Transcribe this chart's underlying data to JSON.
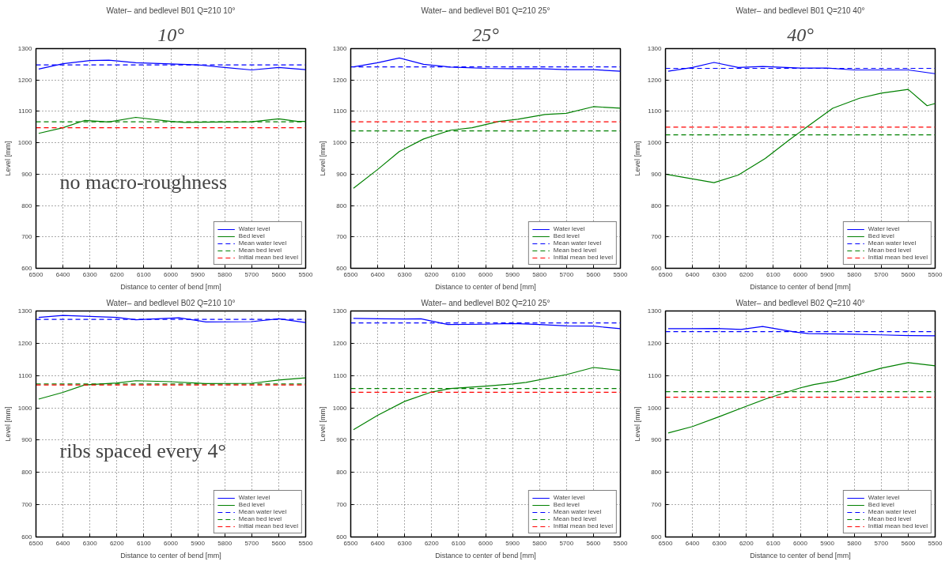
{
  "chart_data": [
    {
      "type": "line",
      "subtitle": "10°",
      "title": "Water– and bedlevel B01 Q=210 10°",
      "xlabel": "Distance to center of bend [mm]",
      "ylabel": "Level [mm]",
      "annotations": [
        "no macro-roughness"
      ],
      "xlim": [
        6500,
        5500
      ],
      "ylim": [
        600,
        1300
      ],
      "xticks": [
        6500,
        6400,
        6300,
        6200,
        6100,
        6000,
        5900,
        5800,
        5700,
        5600,
        5500
      ],
      "yticks": [
        600,
        700,
        800,
        900,
        1000,
        1100,
        1200,
        1300
      ],
      "grid": true,
      "legend": "bottom right",
      "series": [
        {
          "name": "Water level",
          "color": "#0000ff",
          "line_style": "solid",
          "x": [
            6490,
            6400,
            6300,
            6230,
            6130,
            6000,
            5900,
            5800,
            5700,
            5600,
            5500
          ],
          "values": [
            1235,
            1252,
            1262,
            1263,
            1255,
            1251,
            1248,
            1240,
            1232,
            1240,
            1233
          ]
        },
        {
          "name": "Bed level",
          "color": "#008000",
          "line_style": "solid",
          "x": [
            6490,
            6400,
            6320,
            6230,
            6130,
            6000,
            5950,
            5800,
            5700,
            5600,
            5530,
            5500
          ],
          "values": [
            1030,
            1048,
            1071,
            1066,
            1081,
            1068,
            1065,
            1066,
            1067,
            1076,
            1068,
            1068
          ]
        },
        {
          "name": "Mean water level",
          "color": "#0000ff",
          "line_style": "dashed",
          "x": [
            6500,
            5500
          ],
          "values": [
            1248,
            1248
          ]
        },
        {
          "name": "Mean bed level",
          "color": "#008000",
          "line_style": "dashed",
          "x": [
            6500,
            5500
          ],
          "values": [
            1067,
            1067
          ]
        },
        {
          "name": "Initial mean bed level",
          "color": "#ff0000",
          "line_style": "dashed",
          "x": [
            6500,
            5500
          ],
          "values": [
            1048,
            1048
          ]
        }
      ]
    },
    {
      "type": "line",
      "subtitle": "25°",
      "title": "Water– and bedlevel B01 Q=210 25°",
      "xlabel": "Distance to center of bend [mm]",
      "ylabel": "Level [mm]",
      "xlim": [
        6500,
        5500
      ],
      "ylim": [
        600,
        1300
      ],
      "xticks": [
        6500,
        6400,
        6300,
        6200,
        6100,
        6000,
        5900,
        5800,
        5700,
        5600,
        5500
      ],
      "yticks": [
        600,
        700,
        800,
        900,
        1000,
        1100,
        1200,
        1300
      ],
      "grid": true,
      "legend": "bottom right",
      "series": [
        {
          "name": "Water level",
          "color": "#0000ff",
          "line_style": "solid",
          "x": [
            6490,
            6400,
            6320,
            6230,
            6130,
            6000,
            5900,
            5800,
            5700,
            5600,
            5500
          ],
          "values": [
            1242,
            1255,
            1270,
            1250,
            1241,
            1237,
            1236,
            1236,
            1233,
            1233,
            1228
          ]
        },
        {
          "name": "Bed level",
          "color": "#008000",
          "line_style": "solid",
          "x": [
            6490,
            6400,
            6320,
            6230,
            6130,
            6050,
            5950,
            5880,
            5780,
            5700,
            5600,
            5500
          ],
          "values": [
            855,
            915,
            972,
            1012,
            1040,
            1048,
            1068,
            1075,
            1090,
            1094,
            1115,
            1110
          ]
        },
        {
          "name": "Mean water level",
          "color": "#0000ff",
          "line_style": "dashed",
          "x": [
            6500,
            5500
          ],
          "values": [
            1242,
            1242
          ]
        },
        {
          "name": "Mean bed level",
          "color": "#008000",
          "line_style": "dashed",
          "x": [
            6500,
            5500
          ],
          "values": [
            1038,
            1038
          ]
        },
        {
          "name": "Initial mean bed level",
          "color": "#ff0000",
          "line_style": "dashed",
          "x": [
            6500,
            5500
          ],
          "values": [
            1067,
            1067
          ]
        }
      ]
    },
    {
      "type": "line",
      "subtitle": "40°",
      "title": "Water– and bedlevel B01 Q=210 40°",
      "xlabel": "Distance to center of bend [mm]",
      "ylabel": "Level [mm]",
      "xlim": [
        6500,
        5500
      ],
      "ylim": [
        600,
        1300
      ],
      "xticks": [
        6500,
        6400,
        6300,
        6200,
        6100,
        6000,
        5900,
        5800,
        5700,
        5600,
        5500
      ],
      "yticks": [
        600,
        700,
        800,
        900,
        1000,
        1100,
        1200,
        1300
      ],
      "grid": true,
      "legend": "bottom right",
      "series": [
        {
          "name": "Water level",
          "color": "#0000ff",
          "line_style": "solid",
          "x": [
            6490,
            6400,
            6320,
            6230,
            6140,
            6000,
            5900,
            5800,
            5700,
            5600,
            5500
          ],
          "values": [
            1228,
            1240,
            1256,
            1240,
            1243,
            1238,
            1238,
            1232,
            1232,
            1232,
            1220
          ]
        },
        {
          "name": "Bed level",
          "color": "#008000",
          "line_style": "solid",
          "x": [
            6500,
            6320,
            6230,
            6130,
            6040,
            5880,
            5780,
            5700,
            5600,
            5530,
            5500
          ],
          "values": [
            900,
            873,
            897,
            950,
            1010,
            1110,
            1142,
            1158,
            1170,
            1118,
            1125
          ]
        },
        {
          "name": "Mean water level",
          "color": "#0000ff",
          "line_style": "dashed",
          "x": [
            6500,
            5500
          ],
          "values": [
            1237,
            1237
          ]
        },
        {
          "name": "Mean bed level",
          "color": "#008000",
          "line_style": "dashed",
          "x": [
            6500,
            5500
          ],
          "values": [
            1025,
            1025
          ]
        },
        {
          "name": "Initial mean bed level",
          "color": "#ff0000",
          "line_style": "dashed",
          "x": [
            6500,
            5500
          ],
          "values": [
            1050,
            1050
          ]
        }
      ]
    },
    {
      "type": "line",
      "title": "Water– and bedlevel B02 Q=210 10°",
      "xlabel": "Distance to center of bend [mm]",
      "ylabel": "Level [mm]",
      "annotations": [
        "ribs spaced every 4°"
      ],
      "xlim": [
        6500,
        5500
      ],
      "ylim": [
        600,
        1300
      ],
      "xticks": [
        6500,
        6400,
        6300,
        6200,
        6100,
        6000,
        5900,
        5800,
        5700,
        5600,
        5500
      ],
      "yticks": [
        600,
        700,
        800,
        900,
        1000,
        1100,
        1200,
        1300
      ],
      "grid": true,
      "legend": "bottom right",
      "series": [
        {
          "name": "Water level",
          "color": "#0000ff",
          "line_style": "solid",
          "x": [
            6490,
            6400,
            6300,
            6200,
            6130,
            6050,
            5970,
            5870,
            5700,
            5600,
            5500
          ],
          "values": [
            1280,
            1286,
            1283,
            1280,
            1273,
            1276,
            1279,
            1266,
            1267,
            1276,
            1264
          ]
        },
        {
          "name": "Bed level",
          "color": "#008000",
          "line_style": "solid",
          "x": [
            6490,
            6400,
            6320,
            6200,
            6130,
            6000,
            5870,
            5700,
            5600,
            5500
          ],
          "values": [
            1027,
            1048,
            1071,
            1077,
            1084,
            1081,
            1075,
            1076,
            1086,
            1093
          ]
        },
        {
          "name": "Mean water level",
          "color": "#0000ff",
          "line_style": "dashed",
          "x": [
            6500,
            5500
          ],
          "values": [
            1274,
            1274
          ]
        },
        {
          "name": "Mean bed level",
          "color": "#008000",
          "line_style": "dashed",
          "x": [
            6500,
            5500
          ],
          "values": [
            1074,
            1074
          ]
        },
        {
          "name": "Initial mean bed level",
          "color": "#ff0000",
          "line_style": "dashed",
          "x": [
            6500,
            5500
          ],
          "values": [
            1071,
            1071
          ]
        }
      ]
    },
    {
      "type": "line",
      "title": "Water– and bedlevel B02 Q=210 25°",
      "xlabel": "Distance to center of bend [mm]",
      "ylabel": "Level [mm]",
      "xlim": [
        6500,
        5500
      ],
      "ylim": [
        600,
        1300
      ],
      "xticks": [
        6500,
        6400,
        6300,
        6200,
        6100,
        6000,
        5900,
        5800,
        5700,
        5600,
        5500
      ],
      "yticks": [
        600,
        700,
        800,
        900,
        1000,
        1100,
        1200,
        1300
      ],
      "grid": true,
      "legend": "bottom right",
      "series": [
        {
          "name": "Water level",
          "color": "#0000ff",
          "line_style": "solid",
          "x": [
            6490,
            6400,
            6300,
            6240,
            6140,
            6000,
            5900,
            5800,
            5700,
            5600,
            5500
          ],
          "values": [
            1277,
            1276,
            1275,
            1276,
            1258,
            1259,
            1261,
            1258,
            1254,
            1253,
            1245
          ]
        },
        {
          "name": "Bed level",
          "color": "#008000",
          "line_style": "solid",
          "x": [
            6490,
            6400,
            6300,
            6200,
            6130,
            6000,
            5900,
            5850,
            5700,
            5600,
            5500
          ],
          "values": [
            932,
            977,
            1020,
            1049,
            1060,
            1067,
            1074,
            1079,
            1103,
            1125,
            1116
          ]
        },
        {
          "name": "Mean water level",
          "color": "#0000ff",
          "line_style": "dashed",
          "x": [
            6500,
            5500
          ],
          "values": [
            1263,
            1263
          ]
        },
        {
          "name": "Mean bed level",
          "color": "#008000",
          "line_style": "dashed",
          "x": [
            6500,
            5500
          ],
          "values": [
            1060,
            1060
          ]
        },
        {
          "name": "Initial mean bed level",
          "color": "#ff0000",
          "line_style": "dashed",
          "x": [
            6500,
            5500
          ],
          "values": [
            1048,
            1048
          ]
        }
      ]
    },
    {
      "type": "line",
      "title": "Water– and bedlevel B02 Q=210 40°",
      "xlabel": "Distance to center of bend [mm]",
      "ylabel": "Level [mm]",
      "xlim": [
        6500,
        5500
      ],
      "ylim": [
        600,
        1300
      ],
      "xticks": [
        6500,
        6400,
        6300,
        6200,
        6100,
        6000,
        5900,
        5800,
        5700,
        5600,
        5500
      ],
      "yticks": [
        600,
        700,
        800,
        900,
        1000,
        1100,
        1200,
        1300
      ],
      "grid": true,
      "legend": "bottom right",
      "series": [
        {
          "name": "Water level",
          "color": "#0000ff",
          "line_style": "solid",
          "x": [
            6490,
            6400,
            6310,
            6220,
            6140,
            6020,
            5970,
            5800,
            5700,
            5600,
            5500
          ],
          "values": [
            1245,
            1245,
            1246,
            1243,
            1252,
            1235,
            1230,
            1228,
            1226,
            1224,
            1223
          ]
        },
        {
          "name": "Bed level",
          "color": "#008000",
          "line_style": "solid",
          "x": [
            6490,
            6400,
            6300,
            6200,
            6130,
            6000,
            5950,
            5870,
            5700,
            5600,
            5500
          ],
          "values": [
            922,
            942,
            973,
            1005,
            1027,
            1062,
            1072,
            1083,
            1123,
            1140,
            1130
          ]
        },
        {
          "name": "Mean water level",
          "color": "#0000ff",
          "line_style": "dashed",
          "x": [
            6500,
            5500
          ],
          "values": [
            1236,
            1236
          ]
        },
        {
          "name": "Mean bed level",
          "color": "#008000",
          "line_style": "dashed",
          "x": [
            6500,
            5500
          ],
          "values": [
            1050,
            1050
          ]
        },
        {
          "name": "Initial mean bed level",
          "color": "#ff0000",
          "line_style": "dashed",
          "x": [
            6500,
            5500
          ],
          "values": [
            1033,
            1033
          ]
        }
      ]
    }
  ]
}
